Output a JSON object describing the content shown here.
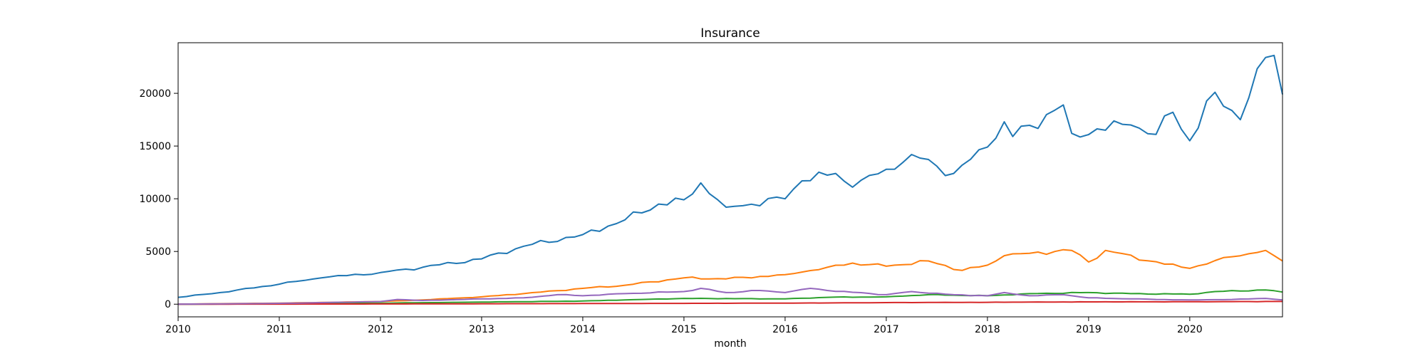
{
  "chart_data": {
    "type": "line",
    "title": "Insurance",
    "xlabel": "month",
    "ylabel": "",
    "xlim": [
      "2010-01",
      "2020-12"
    ],
    "ylim": [
      -1200,
      24800
    ],
    "x_ticks": [
      "2010",
      "2011",
      "2012",
      "2013",
      "2014",
      "2015",
      "2016",
      "2017",
      "2018",
      "2019",
      "2020"
    ],
    "y_ticks": [
      0,
      5000,
      10000,
      15000,
      20000
    ],
    "grid": false,
    "legend": "none",
    "series": [
      {
        "color": "#1f77b4",
        "anchors": [
          [
            "2010-01",
            650
          ],
          [
            "2010-06",
            1100
          ],
          [
            "2011-01",
            1900
          ],
          [
            "2011-06",
            2500
          ],
          [
            "2012-01",
            3000
          ],
          [
            "2012-06",
            3500
          ],
          [
            "2013-01",
            4300
          ],
          [
            "2013-06",
            5500
          ],
          [
            "2014-01",
            6600
          ],
          [
            "2014-06",
            8000
          ],
          [
            "2014-10",
            9500
          ],
          [
            "2015-01",
            9900
          ],
          [
            "2015-03",
            11500
          ],
          [
            "2015-06",
            9200
          ],
          [
            "2016-01",
            10000
          ],
          [
            "2016-03",
            11700
          ],
          [
            "2016-07",
            12400
          ],
          [
            "2016-09",
            11100
          ],
          [
            "2017-01",
            12800
          ],
          [
            "2017-04",
            14200
          ],
          [
            "2017-09",
            12400
          ],
          [
            "2018-01",
            14900
          ],
          [
            "2018-03",
            17300
          ],
          [
            "2018-04",
            15900
          ],
          [
            "2018-10",
            18900
          ],
          [
            "2018-11",
            16200
          ],
          [
            "2019-06",
            17000
          ],
          [
            "2019-09",
            16100
          ],
          [
            "2019-11",
            18200
          ],
          [
            "2020-01",
            15500
          ],
          [
            "2020-04",
            20100
          ],
          [
            "2020-07",
            17500
          ],
          [
            "2020-10",
            23400
          ],
          [
            "2020-11",
            23600
          ],
          [
            "2020-12",
            19900
          ]
        ]
      },
      {
        "color": "#ff7f0e",
        "anchors": [
          [
            "2010-01",
            0
          ],
          [
            "2010-06",
            50
          ],
          [
            "2011-01",
            100
          ],
          [
            "2012-01",
            250
          ],
          [
            "2012-06",
            400
          ],
          [
            "2013-01",
            700
          ],
          [
            "2013-06",
            1000
          ],
          [
            "2014-01",
            1500
          ],
          [
            "2014-06",
            1800
          ],
          [
            "2015-01",
            2500
          ],
          [
            "2015-06",
            2400
          ],
          [
            "2016-01",
            2800
          ],
          [
            "2016-06",
            3500
          ],
          [
            "2016-09",
            3900
          ],
          [
            "2017-01",
            3600
          ],
          [
            "2017-06",
            4100
          ],
          [
            "2017-10",
            3200
          ],
          [
            "2018-01",
            3700
          ],
          [
            "2018-03",
            4600
          ],
          [
            "2018-09",
            5000
          ],
          [
            "2018-11",
            5100
          ],
          [
            "2019-01",
            4000
          ],
          [
            "2019-03",
            5100
          ],
          [
            "2019-10",
            3800
          ],
          [
            "2020-01",
            3400
          ],
          [
            "2020-06",
            4500
          ],
          [
            "2020-10",
            5100
          ],
          [
            "2020-12",
            4100
          ]
        ]
      },
      {
        "color": "#2ca02c",
        "anchors": [
          [
            "2010-01",
            0
          ],
          [
            "2011-01",
            30
          ],
          [
            "2012-01",
            100
          ],
          [
            "2013-01",
            200
          ],
          [
            "2014-01",
            300
          ],
          [
            "2014-06",
            400
          ],
          [
            "2015-01",
            550
          ],
          [
            "2016-01",
            500
          ],
          [
            "2016-06",
            650
          ],
          [
            "2017-01",
            700
          ],
          [
            "2017-06",
            900
          ],
          [
            "2018-01",
            800
          ],
          [
            "2018-06",
            1000
          ],
          [
            "2019-01",
            1100
          ],
          [
            "2019-06",
            1000
          ],
          [
            "2020-01",
            950
          ],
          [
            "2020-04",
            1200
          ],
          [
            "2020-10",
            1350
          ],
          [
            "2020-12",
            1150
          ]
        ]
      },
      {
        "color": "#d62728",
        "anchors": [
          [
            "2010-01",
            0
          ],
          [
            "2012-01",
            20
          ],
          [
            "2014-01",
            60
          ],
          [
            "2016-01",
            100
          ],
          [
            "2017-01",
            150
          ],
          [
            "2018-01",
            180
          ],
          [
            "2019-01",
            220
          ],
          [
            "2020-01",
            230
          ],
          [
            "2020-12",
            260
          ]
        ]
      },
      {
        "color": "#9467bd",
        "anchors": [
          [
            "2010-01",
            0
          ],
          [
            "2011-01",
            80
          ],
          [
            "2011-06",
            150
          ],
          [
            "2012-01",
            250
          ],
          [
            "2012-03",
            450
          ],
          [
            "2012-06",
            350
          ],
          [
            "2013-01",
            500
          ],
          [
            "2013-06",
            600
          ],
          [
            "2013-10",
            900
          ],
          [
            "2014-01",
            800
          ],
          [
            "2014-06",
            1000
          ],
          [
            "2015-01",
            1200
          ],
          [
            "2015-03",
            1500
          ],
          [
            "2015-06",
            1100
          ],
          [
            "2015-10",
            1300
          ],
          [
            "2016-01",
            1100
          ],
          [
            "2016-04",
            1500
          ],
          [
            "2016-06",
            1300
          ],
          [
            "2017-01",
            900
          ],
          [
            "2017-04",
            1200
          ],
          [
            "2017-09",
            900
          ],
          [
            "2018-01",
            800
          ],
          [
            "2018-03",
            1100
          ],
          [
            "2018-06",
            800
          ],
          [
            "2018-10",
            900
          ],
          [
            "2019-01",
            600
          ],
          [
            "2019-06",
            500
          ],
          [
            "2020-01",
            400
          ],
          [
            "2020-06",
            450
          ],
          [
            "2020-10",
            550
          ],
          [
            "2020-12",
            400
          ]
        ]
      }
    ]
  }
}
